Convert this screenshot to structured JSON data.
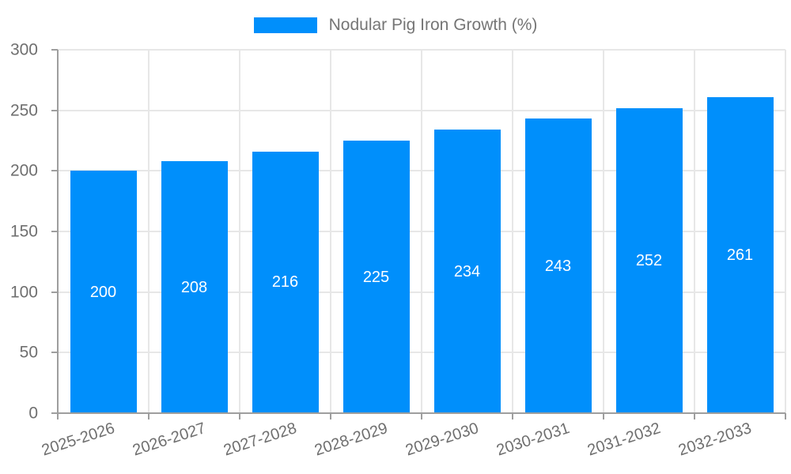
{
  "chart_data": {
    "type": "bar",
    "title": "",
    "legend": {
      "label": "Nodular Pig Iron Growth (%)",
      "position": "top-center",
      "marker": "rectangle"
    },
    "categories": [
      "2025-2026",
      "2026-2027",
      "2027-2028",
      "2028-2029",
      "2029-2030",
      "2030-2031",
      "2031-2032",
      "2032-2033"
    ],
    "series": [
      {
        "name": "Nodular Pig Iron Growth (%)",
        "values": [
          200,
          208,
          216,
          225,
          234,
          243,
          252,
          261
        ]
      }
    ],
    "bar_value_labels": [
      "200",
      "208",
      "216",
      "225",
      "234",
      "243",
      "252",
      "261"
    ],
    "xlabel": "",
    "ylabel": "",
    "ylim": [
      0,
      300
    ],
    "yticks": [
      0,
      50,
      100,
      150,
      200,
      250,
      300
    ],
    "grid": "horizontal and vertical light gray lines",
    "x_label_rotation_deg": -18,
    "colors": {
      "bar": "#008FFB",
      "axis": "#9e9e9e",
      "grid": "#e7e7e7",
      "tick_label": "#6f6f6f",
      "legend_text": "#757575",
      "bar_label": "#ffffff",
      "background": "#ffffff"
    }
  }
}
